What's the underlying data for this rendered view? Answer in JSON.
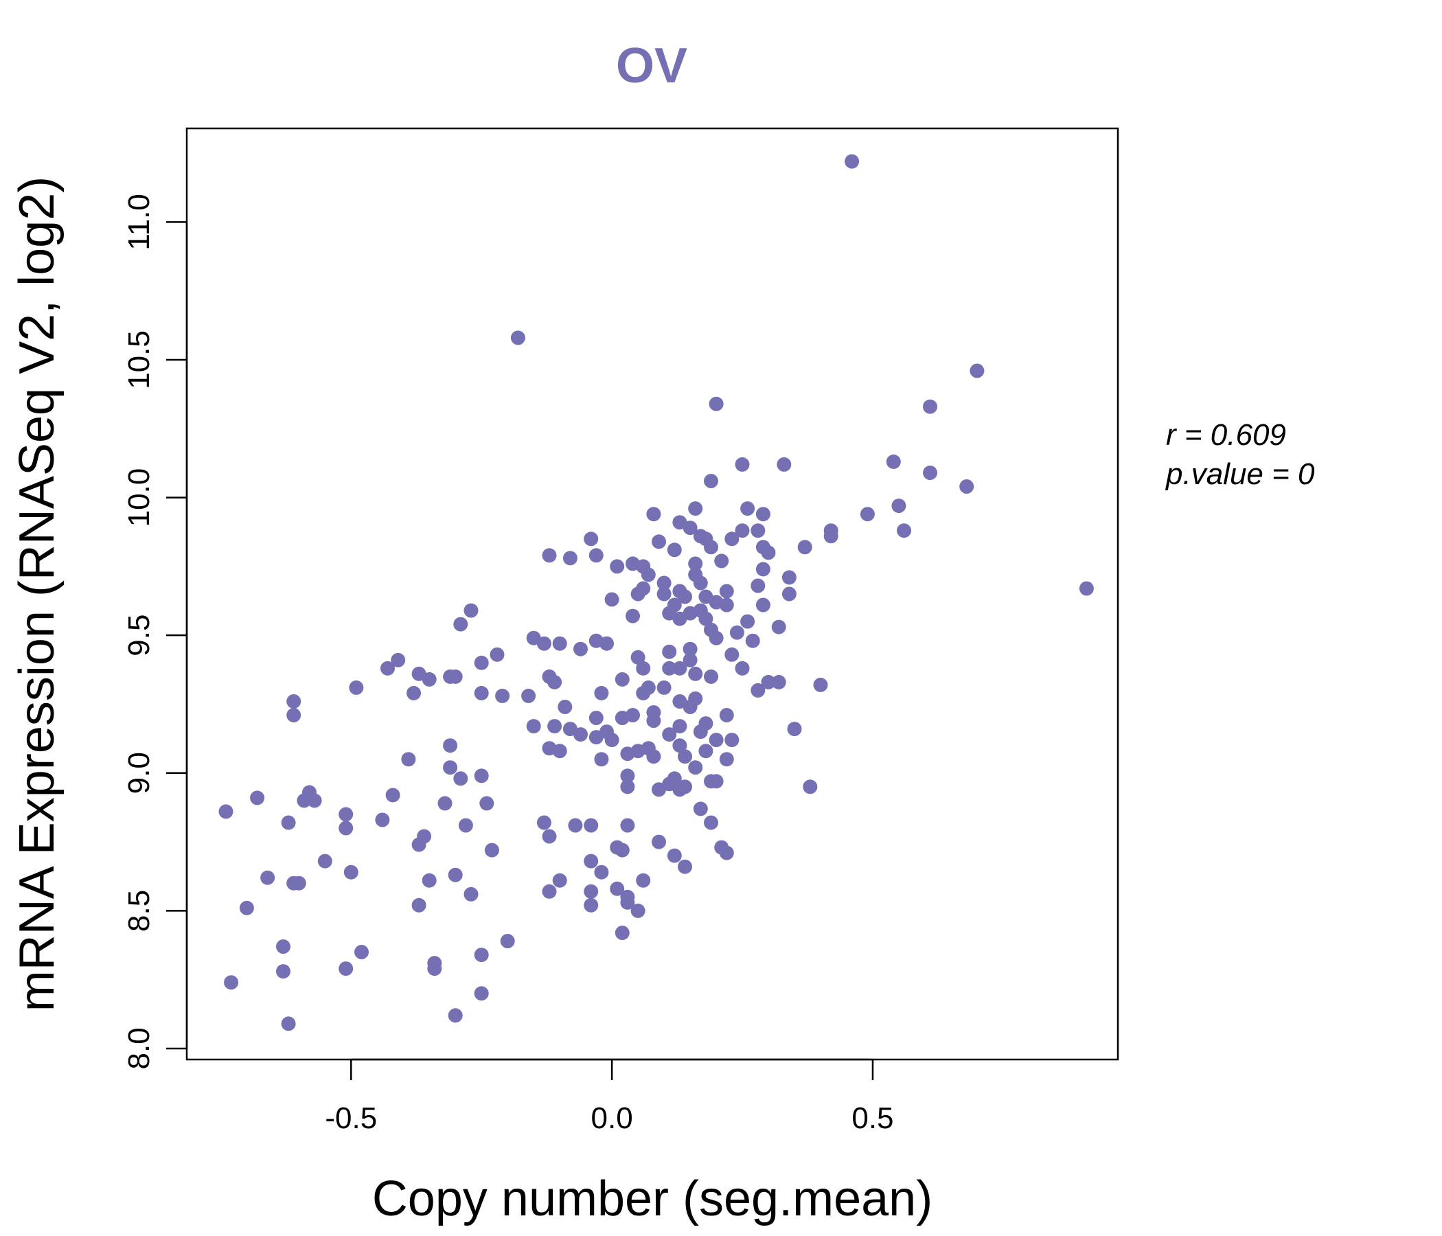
{
  "chart_data": {
    "type": "scatter",
    "title": "OV",
    "xlabel": "Copy number (seg.mean)",
    "ylabel": "mRNA Expression (RNASeq V2, log2)",
    "xlim": [
      -0.815,
      0.97
    ],
    "ylim": [
      7.96,
      11.34
    ],
    "xticks": [
      -0.5,
      0.0,
      0.5
    ],
    "xtick_labels": [
      "-0.5",
      "0.0",
      "0.5"
    ],
    "yticks": [
      8.0,
      8.5,
      9.0,
      9.5,
      10.0,
      10.5,
      11.0
    ],
    "ytick_labels": [
      "8.0",
      "8.5",
      "9.0",
      "9.5",
      "10.0",
      "10.5",
      "11.0"
    ],
    "point_color": "#7570B3",
    "annotation": {
      "r_label": "r = 0.609",
      "p_label": "p.value = 0"
    },
    "points": [
      [
        0.46,
        11.22
      ],
      [
        -0.18,
        10.58
      ],
      [
        0.7,
        10.46
      ],
      [
        0.2,
        10.34
      ],
      [
        0.61,
        10.33
      ],
      [
        0.54,
        10.13
      ],
      [
        0.33,
        10.12
      ],
      [
        0.25,
        10.12
      ],
      [
        0.61,
        10.09
      ],
      [
        0.19,
        10.06
      ],
      [
        0.68,
        10.04
      ],
      [
        0.55,
        9.97
      ],
      [
        0.26,
        9.96
      ],
      [
        0.16,
        9.96
      ],
      [
        0.29,
        9.94
      ],
      [
        0.08,
        9.94
      ],
      [
        0.49,
        9.94
      ],
      [
        0.13,
        9.91
      ],
      [
        0.15,
        9.89
      ],
      [
        0.28,
        9.88
      ],
      [
        0.25,
        9.88
      ],
      [
        0.42,
        9.88
      ],
      [
        0.56,
        9.88
      ],
      [
        -0.04,
        9.85
      ],
      [
        0.18,
        9.85
      ],
      [
        0.23,
        9.85
      ],
      [
        0.42,
        9.86
      ],
      [
        0.09,
        9.84
      ],
      [
        0.17,
        9.86
      ],
      [
        0.37,
        9.82
      ],
      [
        0.19,
        9.82
      ],
      [
        0.12,
        9.81
      ],
      [
        0.29,
        9.82
      ],
      [
        -0.12,
        9.79
      ],
      [
        -0.08,
        9.78
      ],
      [
        -0.03,
        9.79
      ],
      [
        0.3,
        9.8
      ],
      [
        0.01,
        9.75
      ],
      [
        0.04,
        9.76
      ],
      [
        0.06,
        9.75
      ],
      [
        0.16,
        9.76
      ],
      [
        0.21,
        9.77
      ],
      [
        0.29,
        9.74
      ],
      [
        0.07,
        9.72
      ],
      [
        0.16,
        9.72
      ],
      [
        0.34,
        9.71
      ],
      [
        0.17,
        9.69
      ],
      [
        0.1,
        9.69
      ],
      [
        0.06,
        9.67
      ],
      [
        0.13,
        9.66
      ],
      [
        0.05,
        9.65
      ],
      [
        0.1,
        9.65
      ],
      [
        0.14,
        9.64
      ],
      [
        0.22,
        9.66
      ],
      [
        0.34,
        9.65
      ],
      [
        0.28,
        9.68
      ],
      [
        0.0,
        9.63
      ],
      [
        0.18,
        9.64
      ],
      [
        0.2,
        9.62
      ],
      [
        0.22,
        9.61
      ],
      [
        0.29,
        9.61
      ],
      [
        0.12,
        9.61
      ],
      [
        0.11,
        9.58
      ],
      [
        0.15,
        9.58
      ],
      [
        0.17,
        9.59
      ],
      [
        0.04,
        9.57
      ],
      [
        0.13,
        9.56
      ],
      [
        0.18,
        9.56
      ],
      [
        0.26,
        9.55
      ],
      [
        0.32,
        9.53
      ],
      [
        0.19,
        9.52
      ],
      [
        -0.27,
        9.59
      ],
      [
        -0.29,
        9.54
      ],
      [
        -0.15,
        9.49
      ],
      [
        -0.13,
        9.47
      ],
      [
        -0.1,
        9.47
      ],
      [
        -0.06,
        9.45
      ],
      [
        -0.03,
        9.48
      ],
      [
        -0.01,
        9.47
      ],
      [
        0.27,
        9.48
      ],
      [
        0.24,
        9.51
      ],
      [
        0.2,
        9.49
      ],
      [
        0.15,
        9.45
      ],
      [
        0.11,
        9.44
      ],
      [
        0.23,
        9.43
      ],
      [
        0.05,
        9.42
      ],
      [
        0.15,
        9.41
      ],
      [
        -0.41,
        9.41
      ],
      [
        -0.22,
        9.43
      ],
      [
        -0.25,
        9.4
      ],
      [
        -0.43,
        9.38
      ],
      [
        -0.37,
        9.36
      ],
      [
        -0.35,
        9.34
      ],
      [
        -0.31,
        9.35
      ],
      [
        -0.3,
        9.35
      ],
      [
        -0.12,
        9.35
      ],
      [
        -0.11,
        9.33
      ],
      [
        0.02,
        9.34
      ],
      [
        0.06,
        9.38
      ],
      [
        0.11,
        9.38
      ],
      [
        0.13,
        9.38
      ],
      [
        0.16,
        9.36
      ],
      [
        0.19,
        9.35
      ],
      [
        0.25,
        9.38
      ],
      [
        0.3,
        9.33
      ],
      [
        0.32,
        9.33
      ],
      [
        0.4,
        9.32
      ],
      [
        -0.49,
        9.31
      ],
      [
        -0.38,
        9.29
      ],
      [
        -0.25,
        9.29
      ],
      [
        -0.21,
        9.28
      ],
      [
        -0.16,
        9.28
      ],
      [
        -0.02,
        9.29
      ],
      [
        0.07,
        9.31
      ],
      [
        0.1,
        9.31
      ],
      [
        0.06,
        9.29
      ],
      [
        0.28,
        9.3
      ],
      [
        -0.61,
        9.26
      ],
      [
        -0.61,
        9.21
      ],
      [
        -0.09,
        9.24
      ],
      [
        0.08,
        9.22
      ],
      [
        0.13,
        9.26
      ],
      [
        0.16,
        9.27
      ],
      [
        0.15,
        9.24
      ],
      [
        0.22,
        9.21
      ],
      [
        0.04,
        9.21
      ],
      [
        -0.03,
        9.2
      ],
      [
        0.02,
        9.2
      ],
      [
        0.18,
        9.18
      ],
      [
        -0.15,
        9.17
      ],
      [
        -0.11,
        9.17
      ],
      [
        -0.08,
        9.16
      ],
      [
        -0.06,
        9.14
      ],
      [
        -0.03,
        9.13
      ],
      [
        -0.01,
        9.15
      ],
      [
        0.0,
        9.12
      ],
      [
        0.08,
        9.19
      ],
      [
        0.13,
        9.17
      ],
      [
        0.11,
        9.14
      ],
      [
        0.17,
        9.15
      ],
      [
        0.2,
        9.12
      ],
      [
        0.23,
        9.12
      ],
      [
        0.35,
        9.16
      ],
      [
        -0.31,
        9.1
      ],
      [
        -0.12,
        9.09
      ],
      [
        -0.1,
        9.08
      ],
      [
        0.03,
        9.07
      ],
      [
        0.05,
        9.08
      ],
      [
        0.07,
        9.09
      ],
      [
        0.13,
        9.1
      ],
      [
        0.14,
        9.06
      ],
      [
        0.08,
        9.06
      ],
      [
        0.18,
        9.08
      ],
      [
        0.22,
        9.05
      ],
      [
        -0.02,
        9.05
      ],
      [
        -0.39,
        9.05
      ],
      [
        -0.31,
        9.02
      ],
      [
        -0.29,
        8.98
      ],
      [
        -0.25,
        8.99
      ],
      [
        0.03,
        8.99
      ],
      [
        0.12,
        8.98
      ],
      [
        0.16,
        9.02
      ],
      [
        0.19,
        8.97
      ],
      [
        0.2,
        8.97
      ],
      [
        0.11,
        8.96
      ],
      [
        0.14,
        8.95
      ],
      [
        0.13,
        8.94
      ],
      [
        0.09,
        8.94
      ],
      [
        0.03,
        8.95
      ],
      [
        0.38,
        8.95
      ],
      [
        -0.42,
        8.92
      ],
      [
        -0.58,
        8.93
      ],
      [
        -0.59,
        8.9
      ],
      [
        -0.57,
        8.9
      ],
      [
        -0.68,
        8.91
      ],
      [
        -0.24,
        8.89
      ],
      [
        -0.32,
        8.89
      ],
      [
        -0.74,
        8.86
      ],
      [
        -0.51,
        8.85
      ],
      [
        -0.44,
        8.83
      ],
      [
        -0.62,
        8.82
      ],
      [
        -0.51,
        8.8
      ],
      [
        -0.28,
        8.81
      ],
      [
        -0.13,
        8.82
      ],
      [
        -0.07,
        8.81
      ],
      [
        -0.04,
        8.81
      ],
      [
        0.03,
        8.81
      ],
      [
        0.17,
        8.87
      ],
      [
        0.19,
        8.82
      ],
      [
        -0.36,
        8.77
      ],
      [
        -0.37,
        8.74
      ],
      [
        -0.12,
        8.77
      ],
      [
        0.09,
        8.75
      ],
      [
        0.01,
        8.73
      ],
      [
        0.02,
        8.72
      ],
      [
        0.21,
        8.73
      ],
      [
        0.22,
        8.71
      ],
      [
        0.12,
        8.7
      ],
      [
        -0.23,
        8.72
      ],
      [
        -0.55,
        8.68
      ],
      [
        -0.04,
        8.68
      ],
      [
        0.14,
        8.66
      ],
      [
        -0.5,
        8.64
      ],
      [
        -0.3,
        8.63
      ],
      [
        -0.66,
        8.62
      ],
      [
        -0.35,
        8.61
      ],
      [
        -0.1,
        8.61
      ],
      [
        -0.02,
        8.64
      ],
      [
        0.06,
        8.61
      ],
      [
        -0.61,
        8.6
      ],
      [
        -0.6,
        8.6
      ],
      [
        -0.27,
        8.56
      ],
      [
        -0.12,
        8.57
      ],
      [
        -0.04,
        8.57
      ],
      [
        0.01,
        8.58
      ],
      [
        0.03,
        8.55
      ],
      [
        -0.37,
        8.52
      ],
      [
        -0.04,
        8.52
      ],
      [
        0.03,
        8.53
      ],
      [
        0.05,
        8.5
      ],
      [
        -0.7,
        8.51
      ],
      [
        0.02,
        8.42
      ],
      [
        -0.2,
        8.39
      ],
      [
        -0.63,
        8.37
      ],
      [
        -0.48,
        8.35
      ],
      [
        -0.25,
        8.34
      ],
      [
        -0.34,
        8.31
      ],
      [
        -0.34,
        8.29
      ],
      [
        -0.51,
        8.29
      ],
      [
        -0.63,
        8.28
      ],
      [
        -0.73,
        8.24
      ],
      [
        -0.25,
        8.2
      ],
      [
        -0.3,
        8.12
      ],
      [
        -0.62,
        8.09
      ],
      [
        0.91,
        9.67
      ]
    ]
  }
}
